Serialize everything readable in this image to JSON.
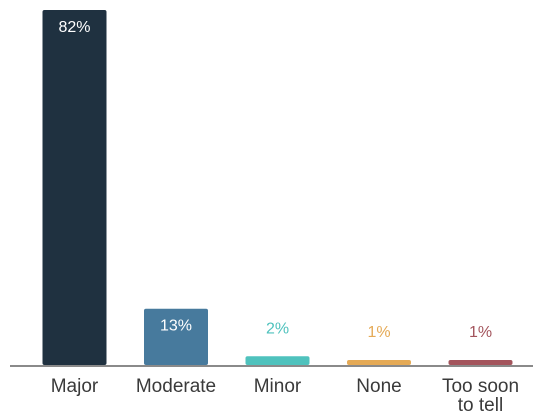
{
  "chart_data": {
    "type": "bar",
    "categories": [
      "Major",
      "Moderate",
      "Minor",
      "None",
      "Too soon to tell"
    ],
    "category_lines": [
      [
        "Major"
      ],
      [
        "Moderate"
      ],
      [
        "Minor"
      ],
      [
        "None"
      ],
      [
        "Too soon",
        "to tell"
      ]
    ],
    "values": [
      82,
      13,
      2,
      1,
      1
    ],
    "value_labels": [
      "82%",
      "13%",
      "2%",
      "1%",
      "1%"
    ],
    "colors": [
      "#1f3140",
      "#477a9d",
      "#4fc2bd",
      "#e5aa56",
      "#a3545c"
    ],
    "label_inside": [
      true,
      true,
      false,
      false,
      false
    ],
    "title": "",
    "xlabel": "",
    "ylabel": "",
    "ylim": [
      0,
      82
    ],
    "grid": false,
    "legend": "none"
  }
}
